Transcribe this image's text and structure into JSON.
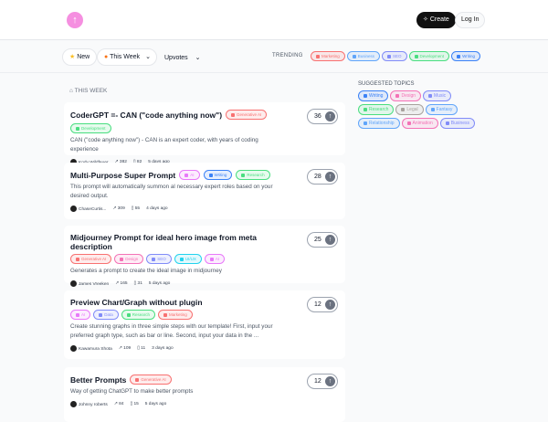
{
  "header": {
    "logo_icon": "arrow-up-icon",
    "create_label": "Create",
    "login_label": "Log In"
  },
  "filters": {
    "new_label": "New",
    "period_label": "This Week",
    "sort_label": "Upvotes",
    "trending_label": "TRENDING",
    "trending": [
      {
        "label": "Marketing",
        "color": "#f87171"
      },
      {
        "label": "Business",
        "color": "#60a5fa"
      },
      {
        "label": "SEO",
        "color": "#818cf8"
      },
      {
        "label": "Development",
        "color": "#4ade80"
      },
      {
        "label": "Writing",
        "color": "#3b82f6"
      }
    ]
  },
  "section_label": "THIS WEEK",
  "sidebar": {
    "title": "SUGGESTED TOPICS",
    "topics": [
      {
        "label": "Writing",
        "color": "#3b82f6"
      },
      {
        "label": "Design",
        "color": "#f472b6"
      },
      {
        "label": "Music",
        "color": "#818cf8"
      },
      {
        "label": "Research",
        "color": "#4ade80"
      },
      {
        "label": "Legal",
        "color": "#a8a29e"
      },
      {
        "label": "Fantasy",
        "color": "#60a5fa"
      },
      {
        "label": "Relationship",
        "color": "#60a5fa"
      },
      {
        "label": "Animation",
        "color": "#f472b6"
      },
      {
        "label": "Business",
        "color": "#818cf8"
      }
    ]
  },
  "prompts": [
    {
      "title": "CoderGPT =- CAN (\"code anything now\")",
      "tags": [
        {
          "label": "Generative AI",
          "color": "#f87171"
        },
        {
          "label": "Development",
          "color": "#4ade80"
        }
      ],
      "description": "CAN (\"code anything now\") - CAN is an expert coder, with years of coding experience",
      "author": "Kody Wildfeuer",
      "views": "382",
      "saves": "82",
      "time": "5 days ago",
      "votes": "36"
    },
    {
      "title": "Multi-Purpose Super Prompt",
      "tags": [
        {
          "label": "AI",
          "color": "#e879f9"
        },
        {
          "label": "Writing",
          "color": "#3b82f6"
        },
        {
          "label": "Research",
          "color": "#4ade80"
        }
      ],
      "description": "This prompt will automatically summon al necessary expert roles based on your desired output.",
      "author": "ChaseCurtis...",
      "views": "309",
      "saves": "55",
      "time": "4 days ago",
      "votes": "28"
    },
    {
      "title": "Midjourney Prompt for ideal hero image from meta description",
      "tags": [
        {
          "label": "Generative AI",
          "color": "#f87171"
        },
        {
          "label": "Design",
          "color": "#f472b6"
        },
        {
          "label": "SEO",
          "color": "#818cf8"
        },
        {
          "label": "UI/UX",
          "color": "#22d3ee"
        },
        {
          "label": "AI",
          "color": "#e879f9"
        }
      ],
      "description": "Generates a prompt to create the ideal image in midjourney",
      "author": "James Vreeken",
      "views": "165",
      "saves": "31",
      "time": "5 days ago",
      "votes": "25"
    },
    {
      "title": "Preview Chart/Graph without plugin",
      "tags": [
        {
          "label": "AI",
          "color": "#e879f9"
        },
        {
          "label": "Data",
          "color": "#818cf8"
        },
        {
          "label": "Research",
          "color": "#4ade80"
        },
        {
          "label": "Marketing",
          "color": "#f87171"
        }
      ],
      "description": "Create stunning graphs in three simple steps with our template! First, input your preferred graph type, such as bar or line. Second, input your data in the ...",
      "author": "Kawamura Shota",
      "views": "109",
      "saves": "11",
      "time": "3 days ago",
      "votes": "12"
    },
    {
      "title": "Better Prompts",
      "tags": [
        {
          "label": "Generative AI",
          "color": "#f87171"
        }
      ],
      "description": "Way of getting ChatGPT to make better prompts",
      "author": "Johnny roberts",
      "views": "84",
      "saves": "15",
      "time": "5 days ago",
      "votes": "12"
    }
  ]
}
